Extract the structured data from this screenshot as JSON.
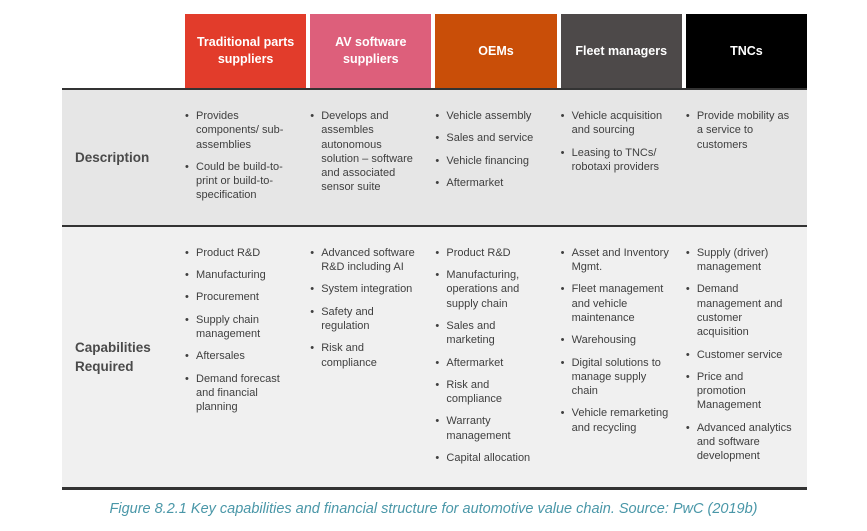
{
  "header": {
    "columns": [
      {
        "label": "Traditional parts suppliers",
        "color": "#e23c2b"
      },
      {
        "label": "AV software suppliers",
        "color": "#dd5f7b"
      },
      {
        "label": "OEMs",
        "color": "#c94e08"
      },
      {
        "label": "Fleet managers",
        "color": "#4d4949"
      },
      {
        "label": "TNCs",
        "color": "#000000"
      }
    ]
  },
  "rows": {
    "description": {
      "label": "Description",
      "cells": [
        [
          "Provides components/ sub-assemblies",
          "Could be build-to-print or build-to-specification"
        ],
        [
          "Develops and assembles autonomous solution – software and associated sensor suite"
        ],
        [
          "Vehicle assembly",
          "Sales and service",
          "Vehicle financing",
          "Aftermarket"
        ],
        [
          "Vehicle acquisition and sourcing",
          "Leasing to TNCs/ robotaxi providers"
        ],
        [
          "Provide mobility as a service to customers"
        ]
      ]
    },
    "capabilities": {
      "label": "Capabilities Required",
      "cells": [
        [
          "Product R&D",
          "Manufacturing",
          "Procurement",
          "Supply chain management",
          "Aftersales",
          "Demand forecast and financial planning"
        ],
        [
          "Advanced software R&D including AI",
          "System integration",
          "Safety and regulation",
          "Risk and compliance"
        ],
        [
          "Product R&D",
          "Manufacturing, operations and supply chain",
          "Sales and marketing",
          "Aftermarket",
          "Risk and compliance",
          "Warranty management",
          "Capital allocation"
        ],
        [
          "Asset and Inventory Mgmt.",
          "Fleet management and vehicle maintenance",
          "Warehousing",
          "Digital solutions to manage supply chain",
          "Vehicle remarketing and recycling"
        ],
        [
          "Supply (driver) management",
          "Demand management and customer acquisition",
          "Customer service",
          "Price and promotion Management",
          "Advanced analytics and software development"
        ]
      ]
    }
  },
  "caption": {
    "text": "Figure 8.2.1 Key capabilities and financial structure for automotive value chain. Source: PwC (2019b)",
    "color": "#4a97a8"
  }
}
